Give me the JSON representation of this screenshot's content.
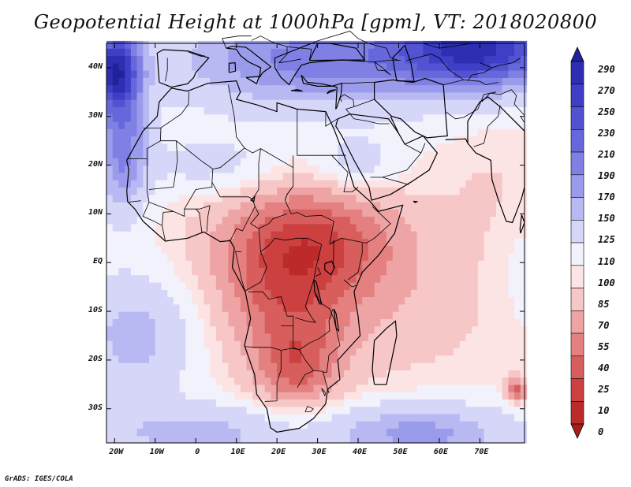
{
  "title": "Geopotential Height at 1000hPa [gpm], VT: 2018020800",
  "credit": "GrADS: IGES/COLA",
  "map": {
    "lon_range": [
      -22,
      81
    ],
    "lat_range": [
      -37,
      45
    ],
    "lat_ticks": [
      {
        "lat": 40,
        "label": "40N"
      },
      {
        "lat": 30,
        "label": "30N"
      },
      {
        "lat": 20,
        "label": "20N"
      },
      {
        "lat": 10,
        "label": "10N"
      },
      {
        "lat": 0,
        "label": "EQ"
      },
      {
        "lat": -10,
        "label": "10S"
      },
      {
        "lat": -20,
        "label": "20S"
      },
      {
        "lat": -30,
        "label": "30S"
      }
    ],
    "lon_ticks": [
      {
        "lon": -20,
        "label": "20W"
      },
      {
        "lon": -10,
        "label": "10W"
      },
      {
        "lon": 0,
        "label": "0"
      },
      {
        "lon": 10,
        "label": "10E"
      },
      {
        "lon": 20,
        "label": "20E"
      },
      {
        "lon": 30,
        "label": "30E"
      },
      {
        "lon": 40,
        "label": "40E"
      },
      {
        "lon": 50,
        "label": "50E"
      },
      {
        "lon": 60,
        "label": "60E"
      },
      {
        "lon": 70,
        "label": "70E"
      }
    ]
  },
  "colorbar": {
    "levels": [
      "290",
      "270",
      "250",
      "230",
      "210",
      "190",
      "170",
      "150",
      "125",
      "110",
      "100",
      "85",
      "70",
      "55",
      "40",
      "25",
      "10",
      "0"
    ],
    "colors": [
      "#21219a",
      "#2e2eb2",
      "#3e3ec6",
      "#5252d2",
      "#6767dc",
      "#8080e4",
      "#9b9bec",
      "#b8b8f2",
      "#d6d6f8",
      "#f2f2fc",
      "#fde4e4",
      "#f7c6c6",
      "#eea4a4",
      "#e48080",
      "#d85e5e",
      "#cc4040",
      "#bc2a2a",
      "#a81c1c"
    ]
  },
  "field": {
    "note": "Approximate gridded features (lon, lat in degrees; amplitude in gpm)",
    "base": 110,
    "features": [
      {
        "lon": 28,
        "lat": 5,
        "amp": -60,
        "sx": 22,
        "sy": 12
      },
      {
        "lon": 22,
        "lat": -8,
        "amp": -40,
        "sx": 16,
        "sy": 14
      },
      {
        "lon": 25,
        "lat": -22,
        "amp": -45,
        "sx": 10,
        "sy": 9
      },
      {
        "lon": 45,
        "lat": -8,
        "amp": -18,
        "sx": 35,
        "sy": 18
      },
      {
        "lon": 79,
        "lat": -26,
        "amp": -60,
        "sx": 2.5,
        "sy": 2.5
      },
      {
        "lon": 75,
        "lat": 15,
        "amp": -12,
        "sx": 12,
        "sy": 12
      },
      {
        "lon": 5,
        "lat": 20,
        "amp": 25,
        "sx": 18,
        "sy": 6
      },
      {
        "lon": 40,
        "lat": 20,
        "amp": 30,
        "sx": 10,
        "sy": 6
      },
      {
        "lon": 30,
        "lat": 42,
        "amp": 90,
        "sx": 35,
        "sy": 10
      },
      {
        "lon": 70,
        "lat": 44,
        "amp": 150,
        "sx": 20,
        "sy": 8
      },
      {
        "lon": -20,
        "lat": 40,
        "amp": 150,
        "sx": 6,
        "sy": 8
      },
      {
        "lon": -18,
        "lat": 25,
        "amp": 90,
        "sx": 6,
        "sy": 14
      },
      {
        "lon": -15,
        "lat": -15,
        "amp": 50,
        "sx": 14,
        "sy": 12
      },
      {
        "lon": 0,
        "lat": -35,
        "amp": 50,
        "sx": 25,
        "sy": 6
      },
      {
        "lon": 55,
        "lat": -35,
        "amp": 70,
        "sx": 22,
        "sy": 6
      },
      {
        "lon": 80,
        "lat": 0,
        "amp": 10,
        "sx": 8,
        "sy": 18
      }
    ]
  }
}
